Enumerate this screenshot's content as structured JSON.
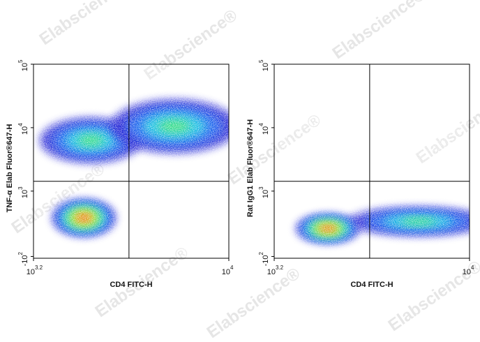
{
  "watermark": "Elabscience®",
  "chart_data": [
    {
      "type": "density",
      "x_label": "CD4 FITC-H",
      "y_label": "TNF-α Elab Fluor®647-H",
      "x_scale": "log",
      "y_scale": "biexponential",
      "xlim": [
        1585,
        10000
      ],
      "ylim": [
        -130,
        100000
      ],
      "xticks": [
        {
          "value": 1585,
          "label": "10",
          "power": "3.2"
        },
        {
          "value": 10000,
          "label": "10",
          "power": "4"
        }
      ],
      "yticks": [
        {
          "value": -100,
          "label": "-10",
          "power": "2"
        },
        {
          "value": 1000,
          "label": "10",
          "power": "3"
        },
        {
          "value": 10000,
          "label": "10",
          "power": "4"
        },
        {
          "value": 100000,
          "label": "10",
          "power": "5"
        }
      ],
      "gate": {
        "x": 3900,
        "y": 1430
      },
      "populations": [
        {
          "x": 2720,
          "y": 6300,
          "spread_x": 0.16,
          "spread_y": 0.55,
          "density": 0.5
        },
        {
          "x": 5980,
          "y": 10500,
          "spread_x": 0.2,
          "spread_y": 0.65,
          "density": 0.45
        },
        {
          "x": 2550,
          "y": 550,
          "spread_x": 0.1,
          "spread_y": 0.45,
          "density": 1
        }
      ]
    },
    {
      "type": "density",
      "x_label": "CD4 FITC-H",
      "y_label": "Rat IgG1 Elab Fluor®647-H",
      "x_scale": "log",
      "y_scale": "biexponential",
      "xlim": [
        1585,
        10000
      ],
      "ylim": [
        -130,
        100000
      ],
      "xticks": [
        {
          "value": 1585,
          "label": "10",
          "power": "3.2"
        },
        {
          "value": 10000,
          "label": "10",
          "power": "4"
        }
      ],
      "yticks": [
        {
          "value": -100,
          "label": "-10",
          "power": "2"
        },
        {
          "value": 1000,
          "label": "10",
          "power": "3"
        },
        {
          "value": 10000,
          "label": "10",
          "power": "4"
        },
        {
          "value": 100000,
          "label": "10",
          "power": "5"
        }
      ],
      "gate": {
        "x": 3900,
        "y": 1430
      },
      "populations": [
        {
          "x": 6170,
          "y": 490,
          "spread_x": 0.22,
          "spread_y": 0.35,
          "density": 0.5
        },
        {
          "x": 2630,
          "y": 370,
          "spread_x": 0.1,
          "spread_y": 0.35,
          "density": 1
        }
      ]
    }
  ]
}
